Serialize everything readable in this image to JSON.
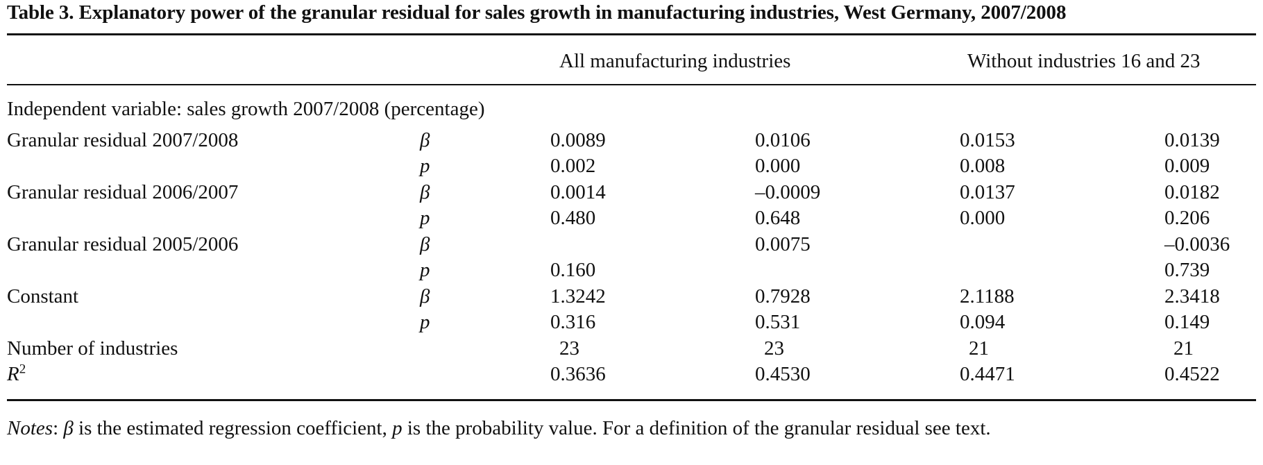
{
  "title": "Table 3.  Explanatory power of the granular residual for sales growth in manufacturing industries, West Germany, 2007/2008",
  "headers": {
    "group1": "All manufacturing industries",
    "group2": "Without industries 16 and 23"
  },
  "section_label": "Independent variable: sales growth 2007/2008 (percentage)",
  "rows": [
    {
      "label": "Granular residual 2007/2008",
      "stat": "β",
      "values": [
        "0.0089",
        "0.0106",
        "0.0153",
        "0.0139"
      ]
    },
    {
      "label": "",
      "stat": "p",
      "values": [
        "0.002",
        "0.000",
        "0.008",
        "0.009"
      ]
    },
    {
      "label": "Granular residual 2006/2007",
      "stat": "β",
      "values": [
        "0.0014",
        "–0.0009",
        "0.0137",
        "0.0182"
      ]
    },
    {
      "label": "",
      "stat": "p",
      "values": [
        "0.480",
        "0.648",
        "0.000",
        "0.206"
      ]
    },
    {
      "label": "Granular residual 2005/2006",
      "stat": "β",
      "values": [
        "",
        "0.0075",
        "",
        "–0.0036"
      ]
    },
    {
      "label": "",
      "stat": "p",
      "values": [
        "0.160",
        "",
        "",
        "0.739"
      ]
    },
    {
      "label": "Constant",
      "stat": "β",
      "values": [
        "1.3242",
        "0.7928",
        "2.1188",
        "2.3418"
      ]
    },
    {
      "label": "",
      "stat": "p",
      "values": [
        "0.316",
        "0.531",
        "0.094",
        "0.149"
      ]
    }
  ],
  "n_row": {
    "label": "Number of industries",
    "values": [
      "23",
      "23",
      "21",
      "21"
    ]
  },
  "r2_row": {
    "label": "R",
    "sup": "2",
    "values": [
      "0.3636",
      "0.4530",
      "0.4471",
      "0.4522"
    ]
  },
  "notes": {
    "prefix": "Notes",
    "sep": ": ",
    "beta": "β",
    "part1": " is the estimated regression coefficient, ",
    "p": "p",
    "part2": " is the probability value. For a definition of the granular residual see text."
  }
}
